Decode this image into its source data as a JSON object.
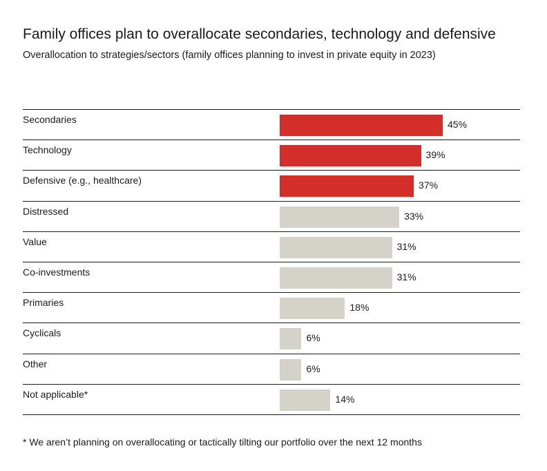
{
  "title": "Family offices plan to overallocate secondaries, technology and defensive",
  "subtitle": "Overallocation to strategies/sectors (family offices planning to invest in private equity in 2023)",
  "footnote": "* We aren’t planning on overallocating or tactically tilting our portfolio over the next 12 months",
  "colors": {
    "highlight": "#d42e2a",
    "neutral": "#d5d3c9"
  },
  "chart_data": {
    "type": "bar",
    "orientation": "horizontal",
    "categories": [
      "Secondaries",
      "Technology",
      "Defensive (e.g., healthcare)",
      "Distressed",
      "Value",
      "Co-investments",
      "Primaries",
      "Cyclicals",
      "Other",
      "Not applicable*"
    ],
    "values": [
      45,
      39,
      37,
      33,
      31,
      31,
      18,
      6,
      6,
      14
    ],
    "value_labels": [
      "45%",
      "39%",
      "37%",
      "33%",
      "31%",
      "31%",
      "18%",
      "6%",
      "6%",
      "14%"
    ],
    "highlighted": [
      true,
      true,
      true,
      false,
      false,
      false,
      false,
      false,
      false,
      false
    ],
    "unit": "%",
    "xlim": [
      0,
      100
    ],
    "grid": false,
    "legend": "none"
  }
}
